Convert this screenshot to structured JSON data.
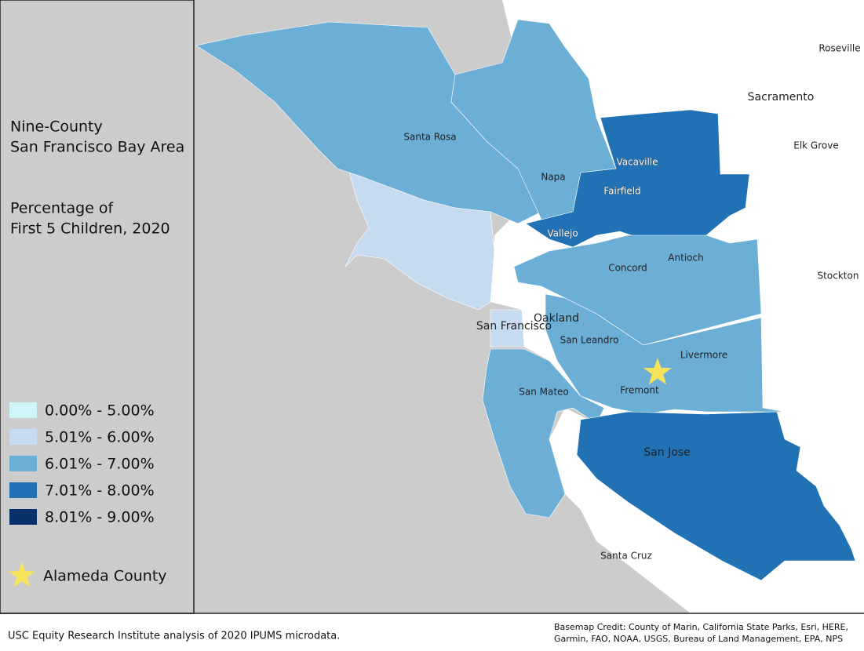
{
  "sidebar": {
    "title_lines": [
      "Nine-County",
      "San Francisco Bay Area"
    ],
    "subtitle_lines": [
      "Percentage of",
      "First 5 Children, 2020"
    ]
  },
  "legend": {
    "items": [
      {
        "label": "0.00% - 5.00%",
        "color": "#ccf6f8"
      },
      {
        "label": "5.01% - 6.00%",
        "color": "#c6dbef"
      },
      {
        "label": "6.01% - 7.00%",
        "color": "#6baed6"
      },
      {
        "label": "7.01% - 8.00%",
        "color": "#2171b5"
      },
      {
        "label": "8.01% - 9.00%",
        "color": "#08306b"
      }
    ],
    "marker_label": "Alameda County",
    "marker_color": "#f7e35a"
  },
  "map": {
    "places": [
      "Roseville",
      "Sacramento",
      "Elk Grove",
      "Stockton",
      "Santa Rosa",
      "Napa",
      "Vacaville",
      "Fairfield",
      "Vallejo",
      "Antioch",
      "Concord",
      "Oakland",
      "San Francisco",
      "San Leandro",
      "Livermore",
      "Fremont",
      "San Mateo",
      "San Jose",
      "Santa Cruz"
    ]
  },
  "footer": {
    "source": "USC Equity Research Institute analysis of 2020 IPUMS microdata.",
    "credit_lines": [
      "Basemap Credit: County of Marin, California State Parks, Esri, HERE,",
      "Garmin, FAO, NOAA, USGS, Bureau of Land Management, EPA, NPS"
    ]
  }
}
